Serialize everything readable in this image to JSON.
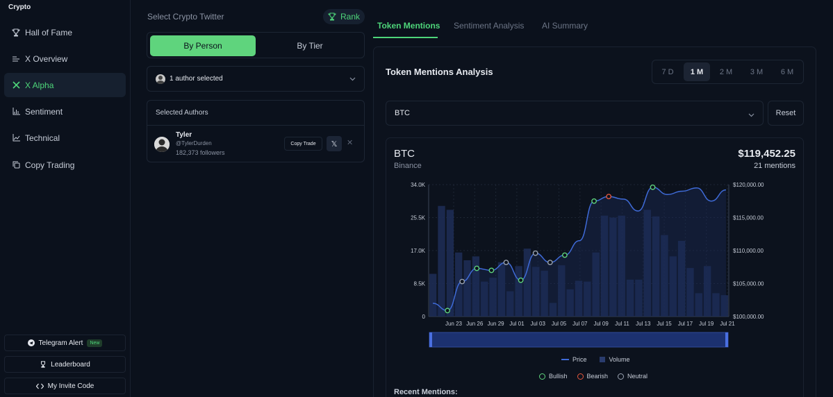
{
  "brand": "Crypto",
  "sidebar": {
    "items": [
      {
        "label": "Hall of Fame",
        "icon": "trophy-icon"
      },
      {
        "label": "X Overview",
        "icon": "list-icon"
      },
      {
        "label": "X Alpha",
        "icon": "x-logo-icon"
      },
      {
        "label": "Sentiment",
        "icon": "bar-chart-icon"
      },
      {
        "label": "Technical",
        "icon": "line-chart-icon"
      },
      {
        "label": "Copy Trading",
        "icon": "copy-icon"
      }
    ],
    "bottom": {
      "telegram": "Telegram Alert",
      "telegram_badge": "New",
      "leaderboard": "Leaderboard",
      "invite": "My Invite Code"
    }
  },
  "middle": {
    "title": "Select Crypto Twitter",
    "rank_label": "Rank",
    "segment": {
      "by_person": "By Person",
      "by_tier": "By Tier"
    },
    "author_select": "1 author selected",
    "selected_header": "Selected Authors",
    "author": {
      "name": "Tyler",
      "handle": "@TylerDurden",
      "followers": "182,373 followers",
      "copy_trade": "Copy Trade",
      "x_label": "𝕏",
      "remove": "✕"
    }
  },
  "tabs": [
    "Token Mentions",
    "Sentiment Analysis",
    "AI Summary"
  ],
  "panel": {
    "title": "Token Mentions Analysis",
    "ranges": [
      "7 D",
      "1 M",
      "2 M",
      "3 M",
      "6 M"
    ],
    "active_range": "1 M",
    "token": "BTC",
    "reset": "Reset",
    "symbol": "BTC",
    "exchange": "Binance",
    "price": "$119,452.25",
    "mentions": "21 mentions",
    "recent_title": "Recent Mentions:"
  },
  "legend": {
    "price": "Price",
    "volume": "Volume",
    "bullish": "Bullish",
    "bearish": "Bearish",
    "neutral": "Neutral"
  },
  "colors": {
    "accent": "#4ed67a",
    "bullish": "#5fd47d",
    "bearish": "#e4573d",
    "neutral": "#9aa3b2",
    "price_line": "#3f6bd8",
    "volume": "#1f2e57"
  },
  "chart_data": {
    "type": "line",
    "x_ticks": [
      "Jun 23",
      "Jun 26",
      "Jun 29",
      "Jul 01",
      "Jul 03",
      "Jul 05",
      "Jul 07",
      "Jul 09",
      "Jul 11",
      "Jul 13",
      "Jul 15",
      "Jul 17",
      "Jul 19",
      "Jul 21"
    ],
    "y_left_ticks": [
      "34.0K",
      "25.5K",
      "17.0K",
      "8.5K",
      "0"
    ],
    "y_right_ticks": [
      "$120,000.00",
      "$115,000.00",
      "$110,000.00",
      "$105,000.00",
      "$100,000.00"
    ],
    "y_left_range": [
      0,
      34000
    ],
    "y_right_range": [
      100000,
      120000
    ],
    "series": [
      {
        "name": "Volume",
        "values": [
          11000,
          28500,
          27500,
          16500,
          14500,
          15500,
          9000,
          10000,
          14000,
          6500,
          13000,
          17500,
          12800,
          11800,
          3500,
          13200,
          7000,
          9200,
          9000,
          16500,
          26000,
          25500,
          26000,
          9500,
          9500,
          27500,
          25800,
          21000,
          15500,
          19500,
          12500,
          6000,
          13000,
          6000,
          5500
        ]
      },
      {
        "name": "Price",
        "values": [
          102000,
          100900,
          105300,
          107300,
          107000,
          108200,
          105500,
          109600,
          108200,
          109300,
          111500,
          117500,
          118200,
          117800,
          116000,
          119600,
          118500,
          119000,
          119500,
          117500,
          119200
        ]
      }
    ],
    "mentions": [
      {
        "index": 1,
        "sentiment": "bullish"
      },
      {
        "index": 2,
        "sentiment": "neutral"
      },
      {
        "index": 3,
        "sentiment": "bullish"
      },
      {
        "index": 4,
        "sentiment": "bullish"
      },
      {
        "index": 5,
        "sentiment": "neutral"
      },
      {
        "index": 6,
        "sentiment": "bullish"
      },
      {
        "index": 7,
        "sentiment": "neutral"
      },
      {
        "index": 8,
        "sentiment": "neutral"
      },
      {
        "index": 9,
        "sentiment": "bullish"
      },
      {
        "index": 11,
        "sentiment": "bullish"
      },
      {
        "index": 12,
        "sentiment": "bearish"
      },
      {
        "index": 15,
        "sentiment": "bullish"
      }
    ],
    "grid": true,
    "legend_position": "bottom"
  }
}
